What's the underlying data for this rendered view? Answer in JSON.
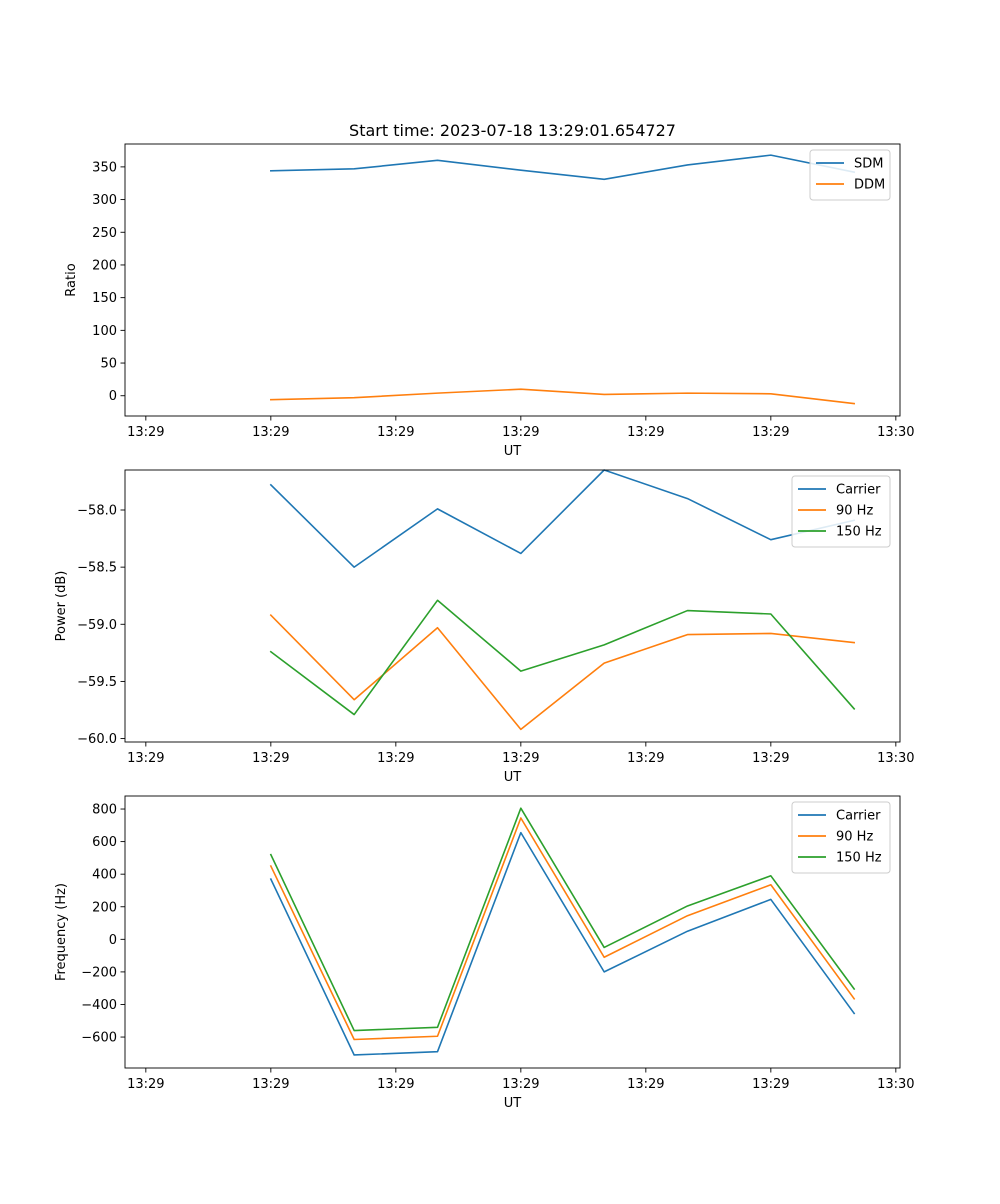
{
  "figure": {
    "title": "Start time: 2023-07-18 13:29:01.654727"
  },
  "colors": {
    "blue": "#1f77b4",
    "orange": "#ff7f0e",
    "green": "#2ca02c"
  },
  "chart_data": [
    {
      "type": "line",
      "title": "Start time: 2023-07-18 13:29:01.654727",
      "xlabel": "UT",
      "ylabel": "Ratio",
      "x_ticks": [
        "13:29",
        "13:29",
        "13:29",
        "13:29",
        "13:29",
        "13:29",
        "13:30"
      ],
      "x": [
        1,
        2,
        3,
        4,
        5,
        6,
        7,
        8
      ],
      "xlim": [
        -0.75,
        8.55
      ],
      "ylim": [
        -31,
        385
      ],
      "y_ticks": [
        0,
        50,
        100,
        150,
        200,
        250,
        300,
        350
      ],
      "legend": "top-right",
      "series": [
        {
          "name": "SDM",
          "color": "#1f77b4",
          "values": [
            344,
            347,
            360,
            345,
            331,
            353,
            368,
            342
          ]
        },
        {
          "name": "DDM",
          "color": "#ff7f0e",
          "values": [
            -6,
            -3,
            4,
            10,
            2,
            4,
            3,
            -12
          ]
        }
      ]
    },
    {
      "type": "line",
      "title": "",
      "xlabel": "UT",
      "ylabel": "Power (dB)",
      "x_ticks": [
        "13:29",
        "13:29",
        "13:29",
        "13:29",
        "13:29",
        "13:29",
        "13:30"
      ],
      "x": [
        1,
        2,
        3,
        4,
        5,
        6,
        7,
        8
      ],
      "xlim": [
        -0.75,
        8.55
      ],
      "ylim": [
        -60.03,
        -57.65
      ],
      "y_ticks": [
        -60.0,
        -59.5,
        -59.0,
        -58.5,
        -58.0
      ],
      "y_tick_labels": [
        "−60.0",
        "−59.5",
        "−59.0",
        "−58.5",
        "−58.0"
      ],
      "legend": "top-right",
      "series": [
        {
          "name": "Carrier",
          "color": "#1f77b4",
          "values": [
            -57.78,
            -58.5,
            -57.99,
            -58.38,
            -57.65,
            -57.9,
            -58.26,
            -58.09
          ]
        },
        {
          "name": "90 Hz",
          "color": "#ff7f0e",
          "values": [
            -58.92,
            -59.66,
            -59.03,
            -59.92,
            -59.34,
            -59.09,
            -59.08,
            -59.16
          ]
        },
        {
          "name": "150 Hz",
          "color": "#2ca02c",
          "values": [
            -59.24,
            -59.79,
            -58.79,
            -59.41,
            -59.18,
            -58.88,
            -58.91,
            -59.74
          ]
        }
      ]
    },
    {
      "type": "line",
      "title": "",
      "xlabel": "UT",
      "ylabel": "Frequency (Hz)",
      "x_ticks": [
        "13:29",
        "13:29",
        "13:29",
        "13:29",
        "13:29",
        "13:29",
        "13:30"
      ],
      "x": [
        1,
        2,
        3,
        4,
        5,
        6,
        7,
        8
      ],
      "xlim": [
        -0.75,
        8.55
      ],
      "ylim": [
        -790,
        880
      ],
      "y_ticks": [
        -600,
        -400,
        -200,
        0,
        200,
        400,
        600,
        800
      ],
      "y_tick_labels": [
        "−600",
        "−400",
        "−200",
        "0",
        "200",
        "400",
        "600",
        "800"
      ],
      "legend": "top-right",
      "series": [
        {
          "name": "Carrier",
          "color": "#1f77b4",
          "values": [
            370,
            -710,
            -690,
            655,
            -200,
            50,
            245,
            -455
          ]
        },
        {
          "name": "90 Hz",
          "color": "#ff7f0e",
          "values": [
            450,
            -615,
            -595,
            745,
            -110,
            145,
            335,
            -365
          ]
        },
        {
          "name": "150 Hz",
          "color": "#2ca02c",
          "values": [
            520,
            -560,
            -540,
            805,
            -50,
            205,
            390,
            -305
          ]
        }
      ]
    }
  ]
}
